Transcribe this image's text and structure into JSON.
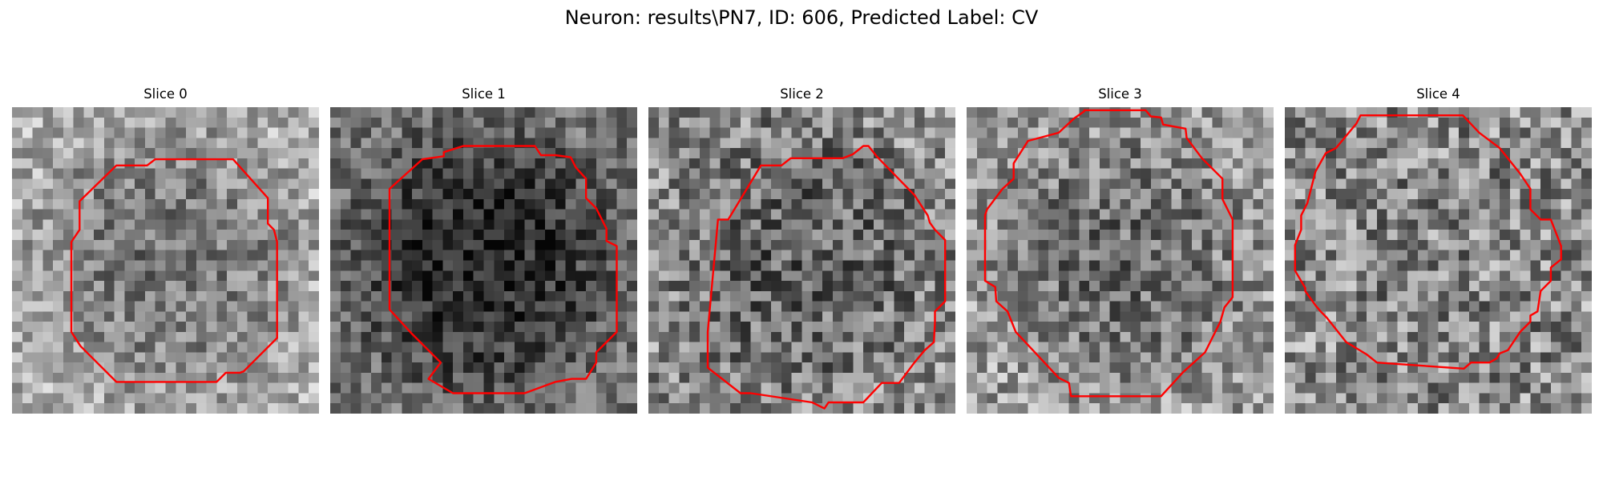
{
  "title": "Neuron: results\\PN7, ID: 606, Predicted Label: CV",
  "contour_color": "#ff0000",
  "grid_size": 30,
  "panels": [
    {
      "label": "Slice 0",
      "seed": 11,
      "base": 0.68,
      "center_level": 0.45,
      "contrast": 0.22,
      "contour": [
        [
          10.2,
          5.7
        ],
        [
          13.2,
          5.7
        ],
        [
          14.0,
          5.1
        ],
        [
          21.6,
          5.1
        ],
        [
          25.0,
          8.9
        ],
        [
          25.0,
          11.4
        ],
        [
          25.6,
          12.0
        ],
        [
          25.9,
          13.2
        ],
        [
          25.9,
          22.6
        ],
        [
          22.6,
          25.9
        ],
        [
          22.5,
          25.9
        ],
        [
          22.3,
          26.0
        ],
        [
          20.9,
          26.0
        ],
        [
          20.0,
          26.9
        ],
        [
          10.2,
          26.9
        ],
        [
          6.7,
          23.4
        ],
        [
          5.8,
          22.0
        ],
        [
          5.8,
          13.2
        ],
        [
          6.6,
          12.0
        ],
        [
          6.6,
          9.2
        ]
      ]
    },
    {
      "label": "Slice 1",
      "seed": 23,
      "base": 0.45,
      "center_level": 0.15,
      "contrast": 0.2,
      "contour": [
        [
          9.0,
          5.1
        ],
        [
          11.1,
          4.8
        ],
        [
          11.1,
          4.4
        ],
        [
          13.0,
          3.8
        ],
        [
          20.0,
          3.8
        ],
        [
          20.6,
          4.7
        ],
        [
          22.0,
          4.7
        ],
        [
          23.5,
          4.9
        ],
        [
          24.0,
          5.9
        ],
        [
          25.0,
          7.0
        ],
        [
          25.0,
          8.9
        ],
        [
          26.0,
          9.9
        ],
        [
          27.0,
          11.9
        ],
        [
          27.0,
          13.1
        ],
        [
          28.0,
          13.6
        ],
        [
          28.0,
          22.0
        ],
        [
          26.0,
          24.0
        ],
        [
          26.0,
          25.0
        ],
        [
          25.0,
          26.6
        ],
        [
          23.6,
          26.6
        ],
        [
          22.0,
          26.9
        ],
        [
          19.0,
          28.0
        ],
        [
          12.0,
          28.0
        ],
        [
          9.6,
          26.6
        ],
        [
          10.8,
          25.0
        ],
        [
          8.0,
          22.2
        ],
        [
          5.8,
          19.8
        ],
        [
          5.8,
          8.0
        ]
      ]
    },
    {
      "label": "Slice 2",
      "seed": 37,
      "base": 0.55,
      "center_level": 0.38,
      "contrast": 0.28,
      "contour": [
        [
          7.8,
          11.0
        ],
        [
          11.0,
          5.7
        ],
        [
          13.0,
          5.7
        ],
        [
          13.9,
          5.0
        ],
        [
          19.0,
          5.0
        ],
        [
          20.0,
          4.6
        ],
        [
          21.0,
          3.8
        ],
        [
          21.5,
          3.8
        ],
        [
          22.3,
          4.8
        ],
        [
          26.0,
          8.6
        ],
        [
          27.3,
          10.6
        ],
        [
          27.5,
          11.3
        ],
        [
          28.0,
          12.0
        ],
        [
          29.0,
          13.0
        ],
        [
          29.0,
          19.0
        ],
        [
          28.0,
          20.0
        ],
        [
          28.0,
          21.0
        ],
        [
          27.9,
          23.0
        ],
        [
          27.0,
          23.8
        ],
        [
          26.0,
          25.0
        ],
        [
          24.5,
          27.0
        ],
        [
          22.8,
          27.0
        ],
        [
          21.0,
          28.9
        ],
        [
          17.6,
          28.9
        ],
        [
          17.2,
          29.5
        ],
        [
          16.0,
          28.9
        ],
        [
          10.0,
          28.0
        ],
        [
          9.0,
          28.0
        ],
        [
          5.8,
          25.5
        ],
        [
          5.8,
          22.0
        ],
        [
          6.8,
          11.0
        ]
      ]
    },
    {
      "label": "Slice 3",
      "seed": 53,
      "base": 0.62,
      "center_level": 0.42,
      "contrast": 0.26,
      "contour": [
        [
          11.5,
          0.3
        ],
        [
          11.5,
          0.4
        ],
        [
          10.5,
          1.1
        ],
        [
          9.0,
          2.5
        ],
        [
          6.0,
          3.3
        ],
        [
          4.6,
          5.5
        ],
        [
          4.6,
          7.0
        ],
        [
          3.5,
          8.0
        ],
        [
          2.0,
          10.0
        ],
        [
          1.8,
          10.6
        ],
        [
          1.8,
          17.0
        ],
        [
          2.8,
          17.6
        ],
        [
          2.9,
          19.0
        ],
        [
          4.0,
          20.0
        ],
        [
          4.8,
          22.0
        ],
        [
          9.0,
          26.5
        ],
        [
          10.0,
          27.0
        ],
        [
          10.2,
          28.3
        ],
        [
          19.0,
          28.3
        ],
        [
          21.1,
          26.0
        ],
        [
          23.3,
          24.0
        ],
        [
          24.8,
          21.0
        ],
        [
          25.2,
          19.6
        ],
        [
          26.0,
          18.6
        ],
        [
          26.0,
          11.0
        ],
        [
          25.0,
          9.0
        ],
        [
          25.0,
          7.0
        ],
        [
          23.0,
          5.0
        ],
        [
          21.5,
          3.0
        ],
        [
          21.4,
          2.1
        ],
        [
          19.2,
          1.7
        ],
        [
          19.0,
          1.0
        ],
        [
          18.0,
          0.9
        ],
        [
          17.5,
          0.3
        ]
      ]
    },
    {
      "label": "Slice 4",
      "seed": 71,
      "base": 0.55,
      "center_level": 0.52,
      "contrast": 0.3,
      "contour": [
        [
          3.0,
          6.3
        ],
        [
          4.0,
          4.5
        ],
        [
          5.0,
          4.0
        ],
        [
          7.0,
          1.6
        ],
        [
          7.4,
          0.8
        ],
        [
          17.4,
          0.8
        ],
        [
          19.0,
          2.5
        ],
        [
          21.0,
          4.0
        ],
        [
          23.0,
          6.5
        ],
        [
          24.0,
          8.0
        ],
        [
          24.0,
          10.0
        ],
        [
          25.0,
          11.0
        ],
        [
          26.0,
          11.0
        ],
        [
          27.0,
          13.6
        ],
        [
          27.0,
          14.9
        ],
        [
          26.0,
          15.7
        ],
        [
          26.0,
          17.0
        ],
        [
          25.0,
          18.0
        ],
        [
          24.7,
          20.0
        ],
        [
          24.0,
          20.4
        ],
        [
          24.0,
          21.0
        ],
        [
          23.0,
          22.0
        ],
        [
          21.8,
          23.8
        ],
        [
          21.0,
          24.1
        ],
        [
          20.7,
          24.6
        ],
        [
          20.0,
          25.0
        ],
        [
          18.2,
          25.0
        ],
        [
          17.5,
          25.6
        ],
        [
          9.0,
          25.0
        ],
        [
          8.0,
          24.2
        ],
        [
          6.0,
          23.0
        ],
        [
          4.1,
          20.6
        ],
        [
          3.5,
          20.0
        ],
        [
          3.0,
          19.4
        ],
        [
          2.0,
          18.0
        ],
        [
          2.0,
          17.7
        ],
        [
          1.0,
          16.0
        ],
        [
          1.0,
          13.5
        ],
        [
          1.6,
          12.0
        ],
        [
          1.6,
          10.6
        ],
        [
          2.2,
          9.4
        ]
      ]
    }
  ]
}
